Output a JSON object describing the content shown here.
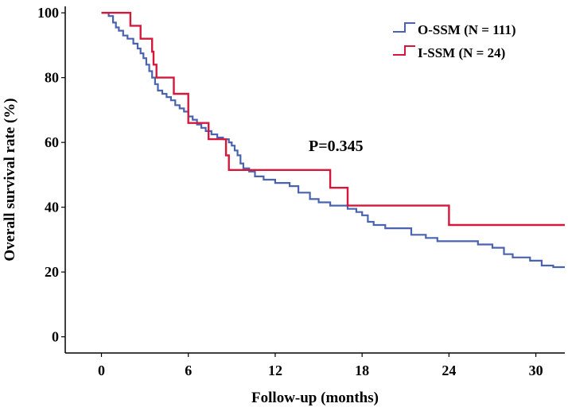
{
  "chart_data": {
    "type": "line",
    "step": true,
    "xlabel": "Follow-up (months)",
    "ylabel": "Overall survival rate (%)",
    "xlim": [
      -2.5,
      32
    ],
    "ylim": [
      -5,
      102
    ],
    "x_ticks": [
      0,
      6,
      12,
      18,
      24,
      30
    ],
    "x_tick_labels": [
      "0",
      "6",
      "12",
      "18",
      "24",
      "30"
    ],
    "y_ticks": [
      0,
      20,
      40,
      60,
      80,
      100
    ],
    "y_tick_labels": [
      "0",
      "20",
      "40",
      "60",
      "80",
      "100"
    ],
    "grid": false,
    "legend_position": "top-right",
    "annotation": "P=0.345",
    "series": [
      {
        "name": "O-SSM (N = 111)",
        "color": "#4a63b0",
        "points": [
          [
            0,
            100
          ],
          [
            0.5,
            99
          ],
          [
            0.8,
            97
          ],
          [
            1.0,
            95.5
          ],
          [
            1.2,
            94.5
          ],
          [
            1.5,
            93
          ],
          [
            1.8,
            92
          ],
          [
            2.2,
            90.5
          ],
          [
            2.5,
            89
          ],
          [
            2.7,
            87.5
          ],
          [
            2.9,
            86
          ],
          [
            3.1,
            84
          ],
          [
            3.3,
            82
          ],
          [
            3.5,
            80
          ],
          [
            3.7,
            78
          ],
          [
            3.9,
            76
          ],
          [
            4.2,
            75
          ],
          [
            4.5,
            74
          ],
          [
            4.8,
            73
          ],
          [
            5.1,
            71.5
          ],
          [
            5.4,
            70.5
          ],
          [
            5.7,
            69.5
          ],
          [
            6.0,
            68
          ],
          [
            6.3,
            67
          ],
          [
            6.6,
            65.5
          ],
          [
            6.9,
            64.5
          ],
          [
            7.2,
            63.5
          ],
          [
            7.6,
            62.5
          ],
          [
            8.0,
            61.5
          ],
          [
            8.4,
            61
          ],
          [
            8.8,
            60
          ],
          [
            9.0,
            59
          ],
          [
            9.2,
            57.5
          ],
          [
            9.4,
            56
          ],
          [
            9.6,
            53.5
          ],
          [
            9.8,
            52
          ],
          [
            10.2,
            51
          ],
          [
            10.6,
            49.5
          ],
          [
            11.2,
            48.5
          ],
          [
            12.0,
            47.5
          ],
          [
            13.0,
            46.5
          ],
          [
            13.6,
            44.5
          ],
          [
            14.4,
            42.5
          ],
          [
            15.0,
            41.5
          ],
          [
            15.8,
            40.5
          ],
          [
            17.0,
            39.5
          ],
          [
            17.6,
            38.5
          ],
          [
            18.0,
            37.5
          ],
          [
            18.4,
            35.5
          ],
          [
            18.8,
            34.5
          ],
          [
            19.6,
            33.5
          ],
          [
            21.4,
            31.5
          ],
          [
            22.4,
            30.5
          ],
          [
            23.2,
            29.5
          ],
          [
            26.0,
            28.5
          ],
          [
            27.0,
            27.5
          ],
          [
            27.8,
            25.5
          ],
          [
            28.4,
            24.5
          ],
          [
            29.6,
            23.5
          ],
          [
            30.4,
            22
          ],
          [
            31.2,
            21.5
          ],
          [
            32,
            21.5
          ]
        ]
      },
      {
        "name": "I-SSM (N = 24)",
        "color": "#d4183c",
        "points": [
          [
            0,
            100
          ],
          [
            2.0,
            96
          ],
          [
            2.7,
            92
          ],
          [
            3.5,
            88
          ],
          [
            3.6,
            84
          ],
          [
            3.8,
            80
          ],
          [
            5.0,
            75
          ],
          [
            6.0,
            66
          ],
          [
            7.4,
            61
          ],
          [
            8.6,
            56
          ],
          [
            8.8,
            51.5
          ],
          [
            15.8,
            46
          ],
          [
            17.0,
            40.5
          ],
          [
            24.0,
            34.5
          ],
          [
            32,
            34.5
          ]
        ]
      }
    ]
  }
}
